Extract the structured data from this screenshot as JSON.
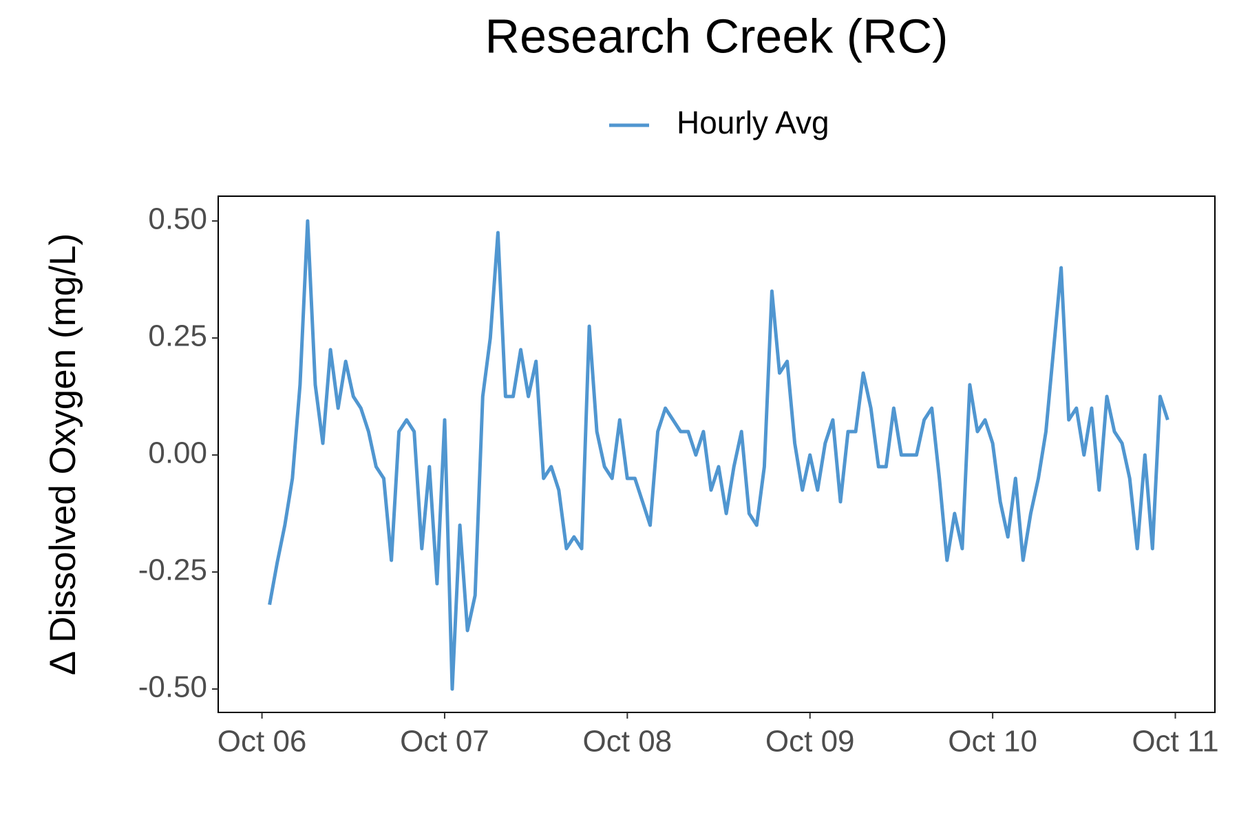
{
  "chart_data": {
    "type": "line",
    "title": "Research Creek (RC)",
    "y_label": "Δ Dissolved Oxygen (mg/L)",
    "x": [
      1,
      2,
      3,
      4,
      5,
      6,
      7,
      8,
      9,
      10,
      11,
      12,
      13,
      14,
      15,
      16,
      17,
      18,
      19,
      20,
      21,
      22,
      23,
      24,
      25,
      26,
      27,
      28,
      29,
      30,
      31,
      32,
      33,
      34,
      35,
      36,
      37,
      38,
      39,
      40,
      41,
      42,
      43,
      44,
      45,
      46,
      47,
      48,
      49,
      50,
      51,
      52,
      53,
      54,
      55,
      56,
      57,
      58,
      59,
      60,
      61,
      62,
      63,
      64,
      65,
      66,
      67,
      68,
      69,
      70,
      71,
      72,
      73,
      74,
      75,
      76,
      77,
      78,
      79,
      80,
      81,
      82,
      83,
      84,
      85,
      86,
      87,
      88,
      89,
      90,
      91,
      92,
      93,
      94,
      95,
      96,
      97,
      98,
      99,
      100,
      101,
      102,
      103,
      104,
      105,
      106,
      107,
      108,
      109,
      110,
      111,
      112,
      113,
      114,
      115,
      116,
      117,
      118,
      119
    ],
    "series": [
      {
        "name": "Hourly Avg",
        "color": "#5096d0",
        "values": [
          -0.32,
          -0.23,
          -0.15,
          -0.05,
          0.15,
          0.5,
          0.15,
          0.025,
          0.225,
          0.1,
          0.2,
          0.125,
          0.1,
          0.05,
          -0.025,
          -0.05,
          -0.225,
          0.05,
          0.075,
          0.05,
          -0.2,
          -0.025,
          -0.275,
          0.075,
          -0.5,
          -0.15,
          -0.375,
          -0.3,
          0.125,
          0.25,
          0.475,
          0.125,
          0.125,
          0.225,
          0.125,
          0.2,
          -0.05,
          -0.025,
          -0.075,
          -0.2,
          -0.175,
          -0.2,
          0.275,
          0.05,
          -0.025,
          -0.05,
          0.075,
          -0.05,
          -0.05,
          -0.1,
          -0.15,
          0.05,
          0.1,
          0.075,
          0.05,
          0.05,
          0.0,
          0.05,
          -0.075,
          -0.025,
          -0.125,
          -0.025,
          0.05,
          -0.125,
          -0.15,
          -0.025,
          0.35,
          0.175,
          0.2,
          0.025,
          -0.075,
          0.0,
          -0.075,
          0.025,
          0.075,
          -0.1,
          0.05,
          0.05,
          0.175,
          0.1,
          -0.025,
          -0.025,
          0.1,
          0.0,
          0.0,
          0.0,
          0.075,
          0.1,
          -0.05,
          -0.225,
          -0.125,
          -0.2,
          0.15,
          0.05,
          0.075,
          0.025,
          -0.1,
          -0.175,
          -0.05,
          -0.225,
          -0.125,
          -0.05,
          0.05,
          0.225,
          0.4,
          0.075,
          0.1,
          0.0,
          0.1,
          -0.075,
          0.125,
          0.05,
          0.025,
          -0.05,
          -0.2,
          0.0,
          -0.2,
          0.125,
          0.075
        ]
      }
    ],
    "xlim": [
      -5.75,
      125.2
    ],
    "xticks": [
      {
        "value": 0,
        "label": "Oct 06"
      },
      {
        "value": 24,
        "label": "Oct 07"
      },
      {
        "value": 48,
        "label": "Oct 08"
      },
      {
        "value": 72,
        "label": "Oct 09"
      },
      {
        "value": 96,
        "label": "Oct 10"
      },
      {
        "value": 120,
        "label": "Oct 11"
      }
    ],
    "ylim": [
      -0.55,
      0.553
    ],
    "yticks": [
      {
        "value": -0.5,
        "label": "-0.50"
      },
      {
        "value": -0.25,
        "label": "-0.25"
      },
      {
        "value": 0,
        "label": "0.00"
      },
      {
        "value": 0.25,
        "label": "0.25"
      },
      {
        "value": 0.5,
        "label": "0.50"
      }
    ],
    "grid": false,
    "legend": "top"
  }
}
